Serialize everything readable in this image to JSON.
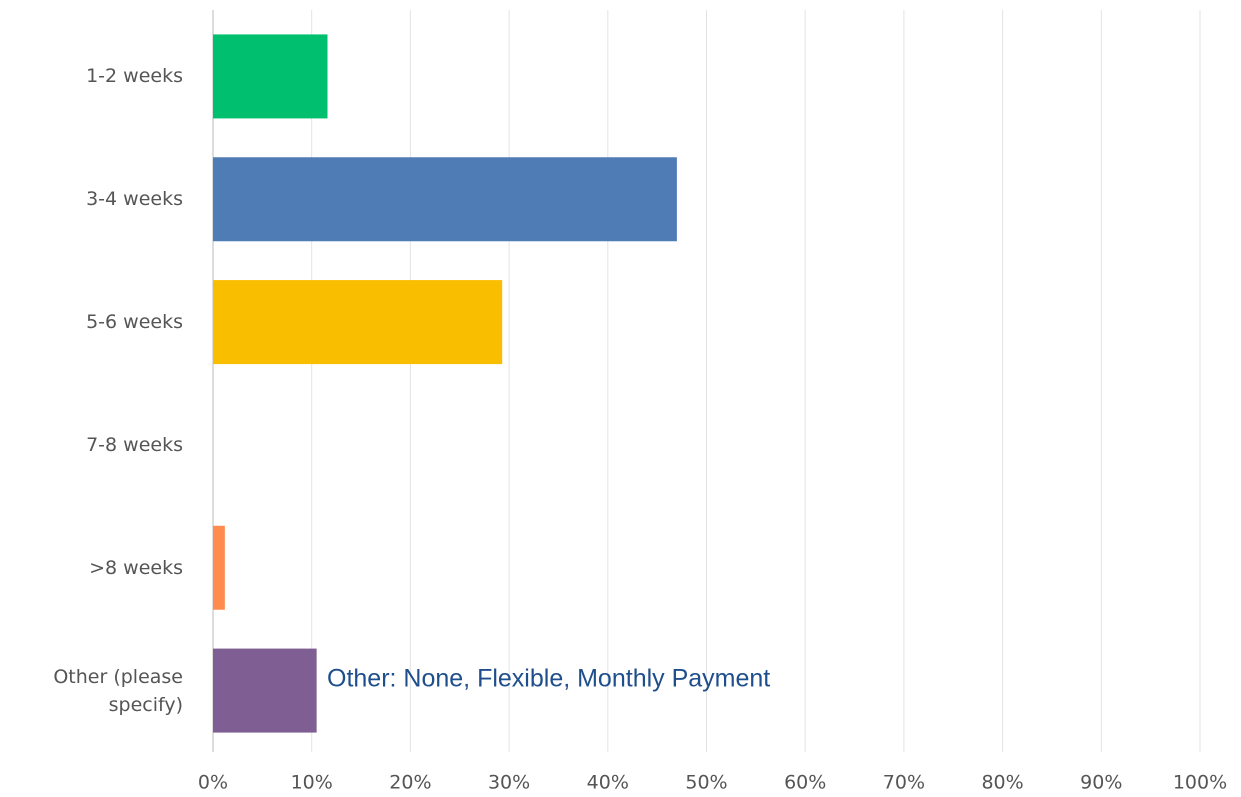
{
  "chart_data": {
    "type": "bar",
    "orientation": "horizontal",
    "categories": [
      "1-2 weeks",
      "3-4 weeks",
      "5-6 weeks",
      "7-8 weeks",
      ">8 weeks",
      "Other (please specify)"
    ],
    "values": [
      11.6,
      47.0,
      29.3,
      0,
      1.2,
      10.5
    ],
    "colors": [
      "#00bf6f",
      "#507cb6",
      "#f9be00",
      "#6bc8cd",
      "#ff8b4f",
      "#7f5f93"
    ],
    "xlim": [
      0,
      100
    ],
    "xticks": [
      {
        "value": 0,
        "label": "0%"
      },
      {
        "value": 10,
        "label": "10%"
      },
      {
        "value": 20,
        "label": "20%"
      },
      {
        "value": 30,
        "label": "30%"
      },
      {
        "value": 40,
        "label": "40%"
      },
      {
        "value": 50,
        "label": "50%"
      },
      {
        "value": 60,
        "label": "60%"
      },
      {
        "value": 70,
        "label": "70%"
      },
      {
        "value": 80,
        "label": "80%"
      },
      {
        "value": 90,
        "label": "90%"
      },
      {
        "value": 100,
        "label": "100%"
      }
    ],
    "grid": true,
    "annotation": "Other: None, Flexible, Monthly Payment"
  }
}
